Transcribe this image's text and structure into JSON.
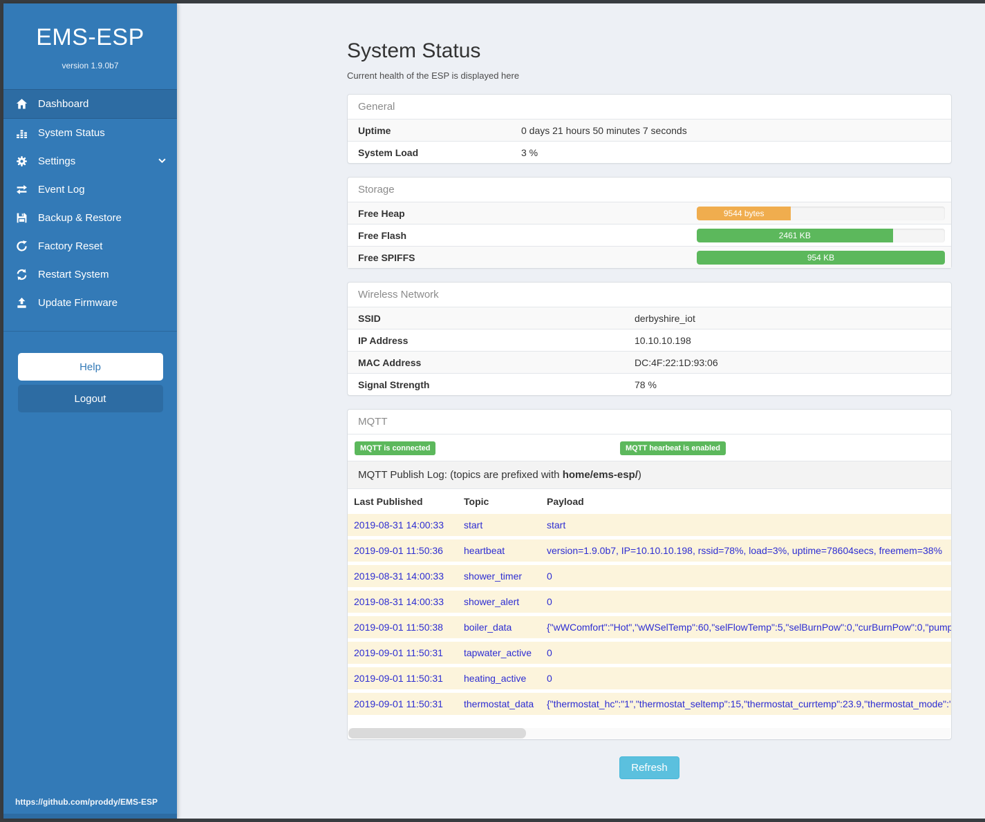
{
  "app": {
    "title": "EMS-ESP",
    "version": "version 1.9.0b7",
    "footer_link": "https://github.com/proddy/EMS-ESP"
  },
  "sidebar": {
    "items": [
      {
        "label": "Dashboard",
        "icon": "home-icon",
        "active": true
      },
      {
        "label": "System Status",
        "icon": "system-status-icon",
        "active": false
      },
      {
        "label": "Settings",
        "icon": "gear-icon",
        "active": false,
        "has_chevron": true
      },
      {
        "label": "Event Log",
        "icon": "exchange-icon",
        "active": false
      },
      {
        "label": "Backup & Restore",
        "icon": "save-icon",
        "active": false
      },
      {
        "label": "Factory Reset",
        "icon": "rotate-icon",
        "active": false
      },
      {
        "label": "Restart System",
        "icon": "refresh-icon",
        "active": false
      },
      {
        "label": "Update Firmware",
        "icon": "upload-icon",
        "active": false
      }
    ],
    "help_label": "Help",
    "logout_label": "Logout"
  },
  "page": {
    "title": "System Status",
    "subtitle": "Current health of the ESP is displayed here",
    "refresh_label": "Refresh"
  },
  "general": {
    "header": "General",
    "rows": [
      {
        "label": "Uptime",
        "value": "0 days 21 hours 50 minutes 7 seconds"
      },
      {
        "label": "System Load",
        "value": "3 %"
      }
    ]
  },
  "storage": {
    "header": "Storage",
    "rows": [
      {
        "label": "Free Heap",
        "value": "9544 bytes",
        "percent": 38,
        "color": "#f0ad4e"
      },
      {
        "label": "Free Flash",
        "value": "2461 KB",
        "percent": 79,
        "color": "#5cb85c"
      },
      {
        "label": "Free SPIFFS",
        "value": "954 KB",
        "percent": 100,
        "color": "#5cb85c"
      }
    ]
  },
  "wireless": {
    "header": "Wireless Network",
    "rows": [
      {
        "label": "SSID",
        "value": "derbyshire_iot"
      },
      {
        "label": "IP Address",
        "value": "10.10.10.198"
      },
      {
        "label": "MAC Address",
        "value": "DC:4F:22:1D:93:06"
      },
      {
        "label": "Signal Strength",
        "value": "78 %"
      }
    ]
  },
  "mqtt": {
    "header": "MQTT",
    "badges": [
      "MQTT is connected",
      "MQTT hearbeat is enabled"
    ],
    "publish_log_prefix": "MQTT Publish Log: (topics are prefixed with ",
    "publish_log_bold": "home/ems-esp/",
    "publish_log_suffix": ")",
    "table": {
      "headers": [
        "Last Published",
        "Topic",
        "Payload"
      ],
      "rows": [
        {
          "time": "2019-08-31 14:00:33",
          "topic": "start",
          "payload": "start"
        },
        {
          "time": "2019-09-01 11:50:36",
          "topic": "heartbeat",
          "payload": "version=1.9.0b7, IP=10.10.10.198, rssid=78%, load=3%, uptime=78604secs, freemem=38%"
        },
        {
          "time": "2019-08-31 14:00:33",
          "topic": "shower_timer",
          "payload": "0"
        },
        {
          "time": "2019-08-31 14:00:33",
          "topic": "shower_alert",
          "payload": "0"
        },
        {
          "time": "2019-09-01 11:50:38",
          "topic": "boiler_data",
          "payload": "{\"wWComfort\":\"Hot\",\"wWSelTemp\":60,\"selFlowTemp\":5,\"selBurnPow\":0,\"curBurnPow\":0,\"pump"
        },
        {
          "time": "2019-09-01 11:50:31",
          "topic": "tapwater_active",
          "payload": "0"
        },
        {
          "time": "2019-09-01 11:50:31",
          "topic": "heating_active",
          "payload": "0"
        },
        {
          "time": "2019-09-01 11:50:31",
          "topic": "thermostat_data",
          "payload": "{\"thermostat_hc\":\"1\",\"thermostat_seltemp\":15,\"thermostat_currtemp\":23.9,\"thermostat_mode\":\""
        }
      ]
    }
  },
  "colors": {
    "sidebar": "#337ab7",
    "sidebar_active": "#2d6ca3",
    "success": "#5cb85c",
    "warning": "#f0ad4e",
    "info_button": "#5bc0de",
    "log_row_bg": "#fcf4dc",
    "log_row_text": "#2d2dd2",
    "frame": "#383c40"
  }
}
